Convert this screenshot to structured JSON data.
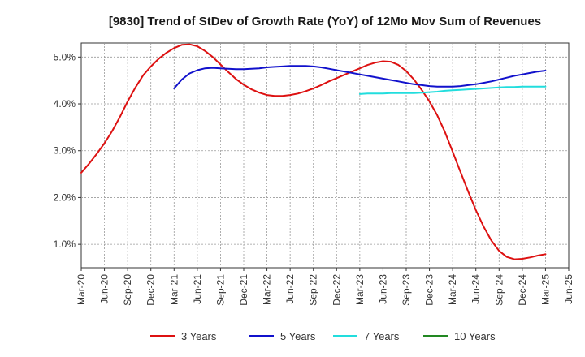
{
  "chart_data": {
    "type": "line",
    "title": "[9830]  Trend of StDev of Growth Rate (YoY) of 12Mo Mov Sum of Revenues",
    "x_tick_labels": [
      "Mar-20",
      "Jun-20",
      "Sep-20",
      "Dec-20",
      "Mar-21",
      "Jun-21",
      "Sep-21",
      "Dec-21",
      "Mar-22",
      "Jun-22",
      "Sep-22",
      "Dec-22",
      "Mar-23",
      "Jun-23",
      "Sep-23",
      "Dec-23",
      "Mar-24",
      "Jun-24",
      "Sep-24",
      "Dec-24",
      "Mar-25",
      "Jun-25"
    ],
    "y_ticks": [
      1.0,
      2.0,
      3.0,
      4.0,
      5.0
    ],
    "y_tick_labels": [
      "1.0%",
      "2.0%",
      "3.0%",
      "4.0%",
      "5.0%"
    ],
    "ylim": [
      0.5,
      5.3
    ],
    "x_range_months": [
      0,
      63
    ],
    "x_unit": "months since Mar-20",
    "grid": true,
    "legend_position": "bottom",
    "series": [
      {
        "name": "3 Years",
        "color": "#dd1111",
        "x": [
          0,
          1,
          2,
          3,
          4,
          5,
          6,
          7,
          8,
          9,
          10,
          11,
          12,
          13,
          14,
          15,
          16,
          17,
          18,
          19,
          20,
          21,
          22,
          23,
          24,
          25,
          26,
          27,
          28,
          29,
          30,
          31,
          32,
          33,
          34,
          35,
          36,
          37,
          38,
          39,
          40,
          41,
          42,
          43,
          44,
          45,
          46,
          47,
          48,
          49,
          50,
          51,
          52,
          53,
          54,
          55,
          56,
          57,
          58,
          59,
          60
        ],
        "values": [
          2.53,
          2.72,
          2.93,
          3.16,
          3.42,
          3.72,
          4.05,
          4.35,
          4.61,
          4.8,
          4.96,
          5.09,
          5.19,
          5.26,
          5.27,
          5.23,
          5.13,
          5.0,
          4.84,
          4.68,
          4.53,
          4.41,
          4.31,
          4.24,
          4.19,
          4.17,
          4.17,
          4.19,
          4.22,
          4.27,
          4.33,
          4.4,
          4.48,
          4.55,
          4.62,
          4.69,
          4.76,
          4.83,
          4.88,
          4.91,
          4.9,
          4.83,
          4.7,
          4.52,
          4.3,
          4.05,
          3.76,
          3.4,
          2.98,
          2.55,
          2.13,
          1.73,
          1.38,
          1.08,
          0.86,
          0.73,
          0.68,
          0.69,
          0.72,
          0.76,
          0.79
        ]
      },
      {
        "name": "5 Years",
        "color": "#1111cc",
        "x": [
          12,
          13,
          14,
          15,
          16,
          17,
          18,
          19,
          20,
          21,
          22,
          23,
          24,
          25,
          26,
          27,
          28,
          29,
          30,
          31,
          32,
          33,
          34,
          35,
          36,
          37,
          38,
          39,
          40,
          41,
          42,
          43,
          44,
          45,
          46,
          47,
          48,
          49,
          50,
          51,
          52,
          53,
          54,
          55,
          56,
          57,
          58,
          59,
          60
        ],
        "values": [
          4.33,
          4.52,
          4.65,
          4.72,
          4.76,
          4.77,
          4.76,
          4.75,
          4.74,
          4.74,
          4.75,
          4.76,
          4.78,
          4.79,
          4.8,
          4.81,
          4.81,
          4.81,
          4.8,
          4.78,
          4.75,
          4.72,
          4.69,
          4.66,
          4.63,
          4.6,
          4.57,
          4.54,
          4.51,
          4.48,
          4.45,
          4.42,
          4.4,
          4.38,
          4.37,
          4.37,
          4.37,
          4.38,
          4.4,
          4.42,
          4.45,
          4.48,
          4.52,
          4.56,
          4.6,
          4.63,
          4.66,
          4.69,
          4.71
        ]
      },
      {
        "name": "7 Years",
        "color": "#22dddd",
        "x": [
          36,
          37,
          38,
          39,
          40,
          41,
          42,
          43,
          44,
          45,
          46,
          47,
          48,
          49,
          50,
          51,
          52,
          53,
          54,
          55,
          56,
          57,
          58,
          59,
          60
        ],
        "values": [
          4.21,
          4.22,
          4.22,
          4.22,
          4.23,
          4.23,
          4.23,
          4.23,
          4.24,
          4.25,
          4.26,
          4.28,
          4.29,
          4.3,
          4.31,
          4.32,
          4.33,
          4.34,
          4.35,
          4.36,
          4.36,
          4.37,
          4.37,
          4.37,
          4.37
        ]
      },
      {
        "name": "10 Years",
        "color": "#228822",
        "x": [],
        "values": []
      }
    ]
  }
}
